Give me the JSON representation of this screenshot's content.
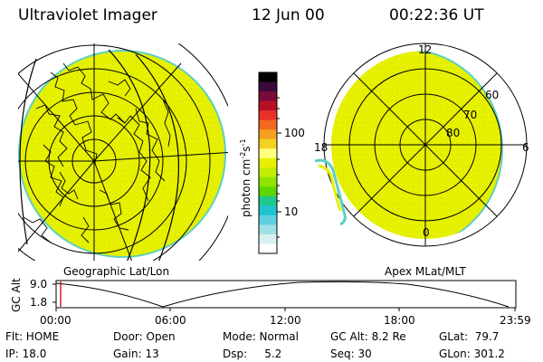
{
  "header": {
    "title": "Ultraviolet Imager",
    "date": "12 Jun 00",
    "time": "00:22:36 UT"
  },
  "colorbar": {
    "unit": "photon cm",
    "unit_sup1": "-2",
    "unit_mid": "s",
    "unit_sup2": "-1",
    "ticks": [
      "100",
      "10"
    ],
    "colors": [
      "#000000",
      "#3a0a3a",
      "#7a0a3a",
      "#b81022",
      "#e8302a",
      "#f06a20",
      "#f5a020",
      "#f4d020",
      "#ffff80",
      "#e6f000",
      "#bfee00",
      "#8ee600",
      "#5cd800",
      "#20c890",
      "#20c4d0",
      "#60d0e0",
      "#a0e0e8",
      "#d8f0f0",
      "#ffffff"
    ]
  },
  "left_panel": {
    "caption": "Geographic Lat/Lon"
  },
  "right_panel": {
    "caption": "Apex MLat/MLT",
    "mlt_labels": {
      "top": "12",
      "left": "18",
      "right": "6",
      "bottom": "0"
    },
    "mlat_labels": [
      "60",
      "70",
      "80"
    ]
  },
  "altitude_plot": {
    "ylabel": "GC Alt",
    "yticks": [
      "9.0",
      "1.8"
    ],
    "xticks": [
      "00:00",
      "06:00",
      "12:00",
      "18:00",
      "23:59"
    ]
  },
  "footer": {
    "row1": {
      "flt": "Flt: HOME",
      "door": "Door: Open",
      "mode": "Mode: Normal",
      "gcalt": "GC Alt: 8.2 Re",
      "glat": "GLat:  79.7"
    },
    "row2": {
      "ip": "IP: 18.0",
      "gain": "Gain: 13",
      "dsp": "Dsp:     5.2",
      "seq": "Seq: 30",
      "glon": "GLon: 301.2"
    }
  },
  "colors": {
    "image_fill": "#e6f000",
    "image_edge": "#5cd0c0",
    "marker": "#d02020"
  }
}
